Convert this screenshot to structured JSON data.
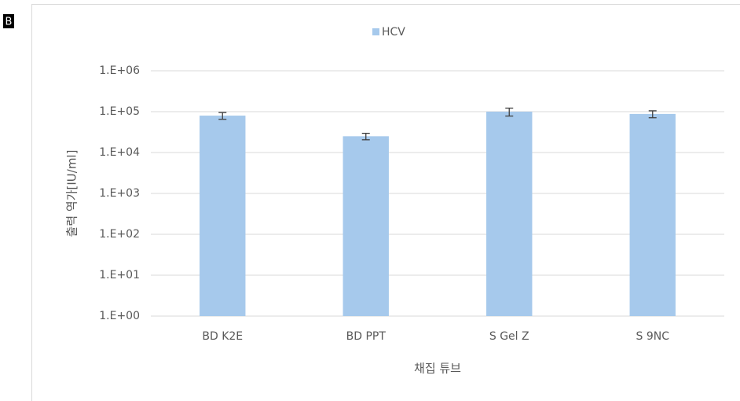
{
  "panel_label": "B",
  "chart_data": {
    "type": "bar",
    "x_label": "채집 튜브",
    "y_label": "출력 역가[IU/ml]",
    "categories": [
      "BD K2E",
      "BD PPT",
      "S Gel Z",
      "S 9NC"
    ],
    "series": [
      {
        "name": "HCV",
        "color": "#a6c9ec",
        "values": [
          80000,
          25000,
          100000,
          88000
        ],
        "errors": [
          15000,
          4500,
          22000,
          17000
        ]
      }
    ],
    "ylim": [
      1,
      1000000
    ],
    "log_scale": true,
    "yticks": [
      {
        "value": 1,
        "label": "1.E+00"
      },
      {
        "value": 10,
        "label": "1.E+01"
      },
      {
        "value": 100,
        "label": "1.E+02"
      },
      {
        "value": 1000,
        "label": "1.E+03"
      },
      {
        "value": 10000,
        "label": "1.E+04"
      },
      {
        "value": 100000,
        "label": "1.E+05"
      },
      {
        "value": 1000000,
        "label": "1.E+06"
      }
    ],
    "grid": true,
    "legend": "top"
  }
}
